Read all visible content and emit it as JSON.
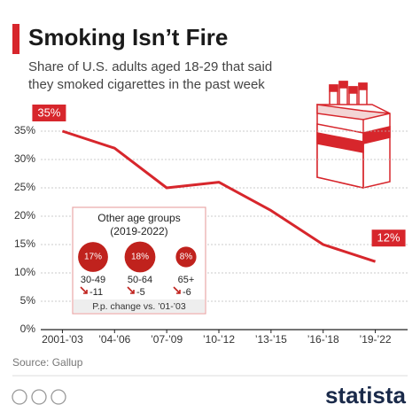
{
  "chart_data": {
    "type": "line",
    "title": "Smoking Isn’t Fire",
    "subtitle": [
      "Share of U.S. adults aged 18-29 that said",
      "they smoked cigarettes in the past week"
    ],
    "categories": [
      "2001-’03",
      "’04-’06",
      "’07-’09",
      "’10-’12",
      "’13-’15",
      "’16-’18",
      "’19-’22"
    ],
    "values": [
      35,
      32,
      25,
      26,
      21,
      15,
      12
    ],
    "value_labels": [
      "35%",
      null,
      null,
      null,
      null,
      null,
      "12%"
    ],
    "color": "#d7262c",
    "ylim": [
      0,
      35
    ],
    "yticks": [
      {
        "value": 0,
        "label": "0%"
      },
      {
        "value": 5,
        "label": "5%"
      },
      {
        "value": 10,
        "label": "10%"
      },
      {
        "value": 15,
        "label": "15%"
      },
      {
        "value": 20,
        "label": "20%"
      },
      {
        "value": 25,
        "label": "25%"
      },
      {
        "value": 30,
        "label": "30%"
      },
      {
        "value": 35,
        "label": "35%"
      }
    ],
    "grid": true,
    "inset": {
      "type": "bubble",
      "title": "Other age groups",
      "subtitle": "(2019-2022)",
      "categories": [
        "30-49",
        "50-64",
        "65+"
      ],
      "values": [
        17,
        18,
        8
      ],
      "value_labels": [
        "17%",
        "18%",
        "8%"
      ],
      "changes": [
        -11,
        -5,
        -6
      ],
      "note": "P.p. change vs. ’01-’03",
      "color": "#c0221d"
    },
    "source": "Source: Gallup",
    "brand": "statista"
  }
}
